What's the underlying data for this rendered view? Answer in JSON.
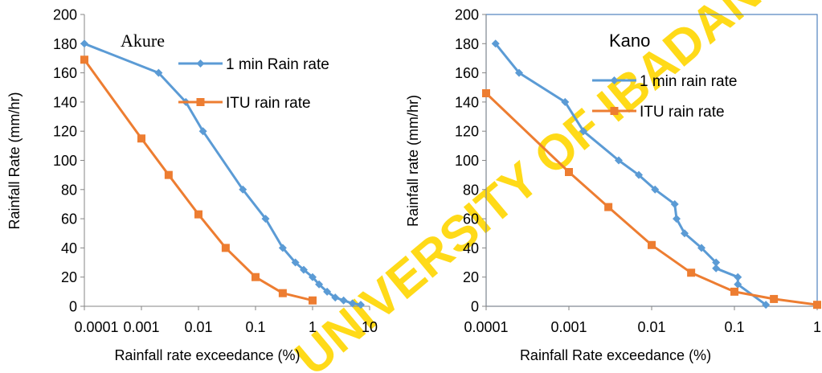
{
  "watermark": "UNIVERSITY OF IBADAN LIBRARY",
  "colors": {
    "series1": "#5B9BD5",
    "series2": "#ED7D31",
    "watermark": "#FFD700",
    "axis": "#868686",
    "frame": "#4F81BD"
  },
  "chart_data": [
    {
      "type": "line",
      "title": "Akure",
      "xlabel": "Rainfall rate  exceedance (%)",
      "ylabel": "Rainfall Rate (mm/hr)",
      "x_scale": "log",
      "xlim": [
        0.0001,
        10
      ],
      "ylim": [
        0,
        200
      ],
      "x_ticks": [
        "0.0001",
        "0.001",
        "0.01",
        "0.1",
        "1",
        "10"
      ],
      "y_ticks": [
        "0",
        "20",
        "40",
        "60",
        "80",
        "100",
        "120",
        "140",
        "160",
        "180",
        "200"
      ],
      "grid": false,
      "legend": "right",
      "series": [
        {
          "name": "1 min Rain rate",
          "marker": "diamond",
          "x": [
            0.0001,
            0.002,
            0.006,
            0.012,
            0.06,
            0.15,
            0.3,
            0.5,
            0.7,
            1,
            1.3,
            1.8,
            2.5,
            3.5,
            5,
            7
          ],
          "y": [
            180,
            160,
            140,
            120,
            80,
            60,
            40,
            30,
            25,
            20,
            15,
            10,
            6,
            4,
            2,
            1
          ]
        },
        {
          "name": "ITU rain rate",
          "marker": "square",
          "x": [
            0.0001,
            0.001,
            0.003,
            0.01,
            0.03,
            0.1,
            0.3,
            1
          ],
          "y": [
            169,
            115,
            90,
            63,
            40,
            20,
            9,
            4
          ]
        }
      ]
    },
    {
      "type": "line",
      "title": "Kano",
      "xlabel": "Rainfall Rate exceedance (%)",
      "ylabel": "Rainfall rate (mm/hr)",
      "x_scale": "log",
      "xlim": [
        0.0001,
        1
      ],
      "ylim": [
        0,
        200
      ],
      "x_ticks": [
        "0.0001",
        "0.001",
        "0.01",
        "0.1",
        "1"
      ],
      "y_ticks": [
        "0",
        "20",
        "40",
        "60",
        "80",
        "100",
        "120",
        "140",
        "160",
        "180",
        "200"
      ],
      "grid": false,
      "legend": "right",
      "series": [
        {
          "name": "1 min rain rate",
          "marker": "diamond",
          "x": [
            0.00013,
            0.00025,
            0.0009,
            0.0015,
            0.004,
            0.007,
            0.011,
            0.019,
            0.02,
            0.025,
            0.04,
            0.06,
            0.06,
            0.11,
            0.11,
            0.24
          ],
          "y": [
            180,
            160,
            140,
            120,
            100,
            90,
            80,
            70,
            60,
            50,
            40,
            30,
            26,
            20,
            15,
            1
          ]
        },
        {
          "name": "ITU rain rate",
          "marker": "square",
          "x": [
            0.0001,
            0.001,
            0.003,
            0.01,
            0.03,
            0.1,
            0.3,
            1
          ],
          "y": [
            146,
            92,
            68,
            42,
            23,
            10,
            5,
            1
          ]
        }
      ]
    }
  ]
}
